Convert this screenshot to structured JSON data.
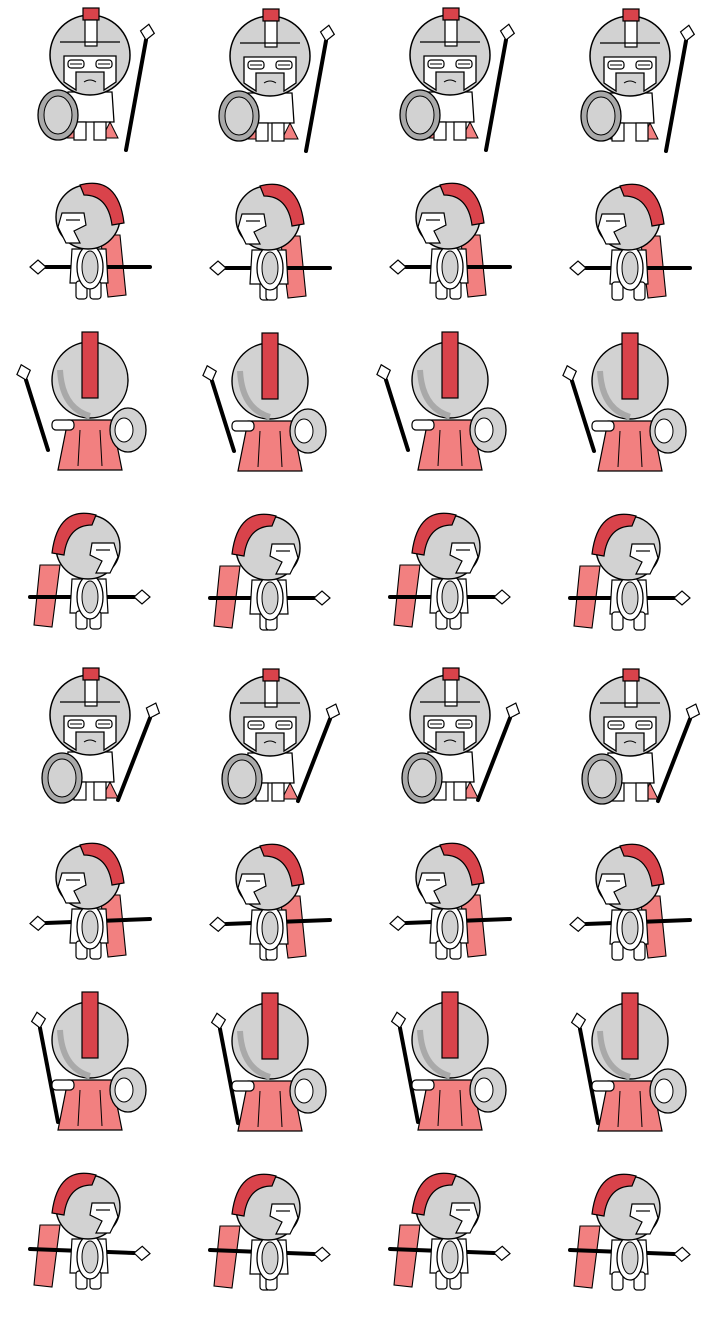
{
  "sprite_sheet": {
    "columns": 4,
    "rows": 8,
    "colors": {
      "outline": "#000000",
      "helmet": "#d2d2d2",
      "helmet_shadow": "#a9a9a9",
      "crest": "#d9434b",
      "cloak": "#f28080",
      "skin": "#ffffff",
      "spear": "#000000"
    },
    "animations": [
      {
        "row": 1,
        "facing": "front",
        "action": "walk",
        "frames": 4
      },
      {
        "row": 2,
        "facing": "left",
        "action": "walk",
        "frames": 4
      },
      {
        "row": 3,
        "facing": "back",
        "action": "walk",
        "frames": 4
      },
      {
        "row": 4,
        "facing": "right",
        "action": "walk",
        "frames": 4
      },
      {
        "row": 5,
        "facing": "front",
        "action": "attack",
        "frames": 4
      },
      {
        "row": 6,
        "facing": "left",
        "action": "attack",
        "frames": 4
      },
      {
        "row": 7,
        "facing": "back",
        "action": "attack",
        "frames": 4
      },
      {
        "row": 8,
        "facing": "right",
        "action": "attack",
        "frames": 4
      }
    ]
  }
}
